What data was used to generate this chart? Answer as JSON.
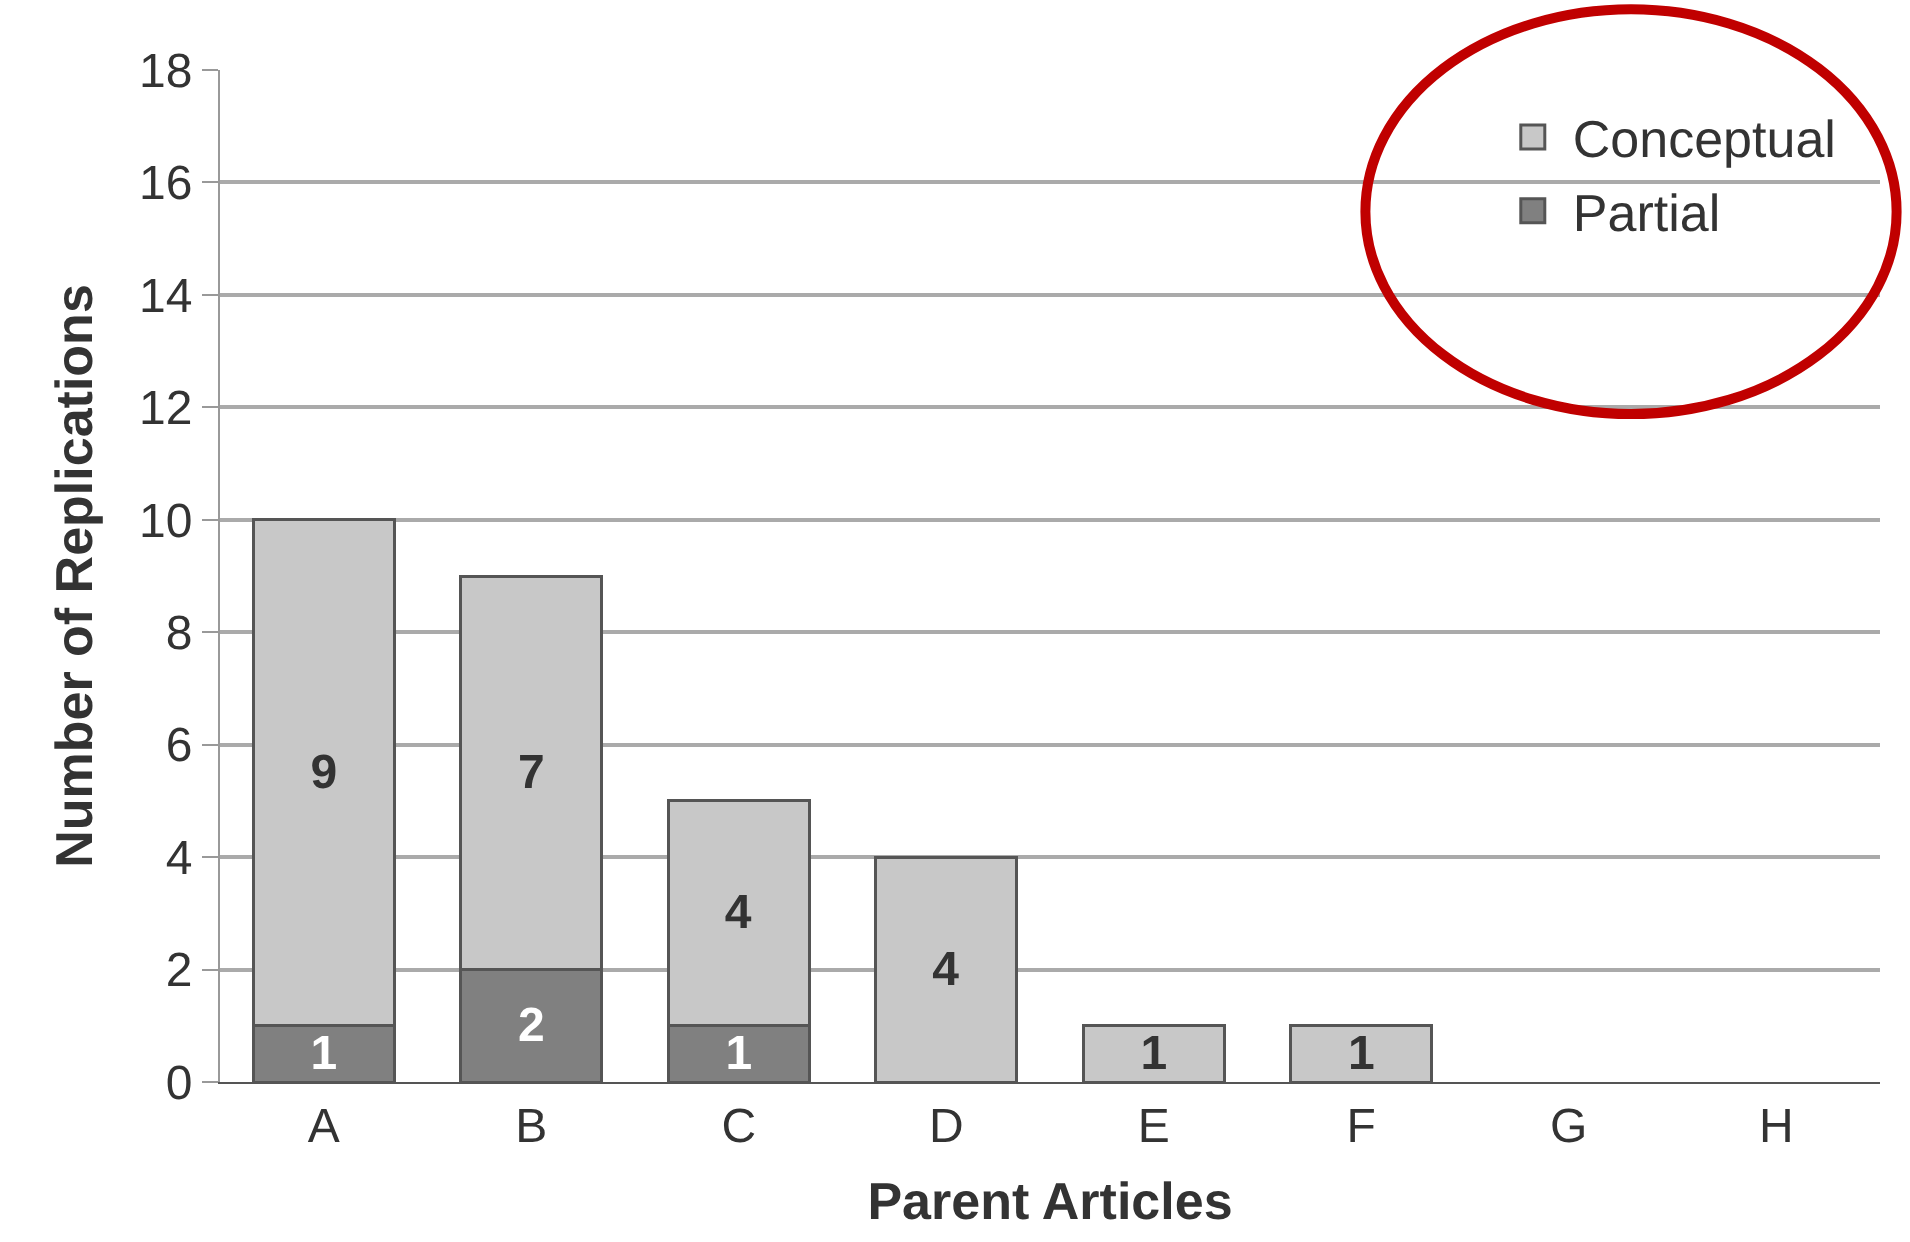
{
  "chart_data": {
    "type": "bar",
    "stacked": true,
    "xlabel": "Parent Articles",
    "ylabel": "Number of Replications",
    "categories": [
      "A",
      "B",
      "C",
      "D",
      "E",
      "F",
      "G",
      "H"
    ],
    "series": [
      {
        "name": "Partial",
        "color": "#808080",
        "values": [
          1,
          2,
          1,
          0,
          0,
          0,
          0,
          0
        ],
        "value_labels": [
          "1",
          "2",
          "1",
          null,
          null,
          null,
          null,
          null
        ]
      },
      {
        "name": "Conceptual",
        "color": "#c8c8c8",
        "values": [
          9,
          7,
          4,
          4,
          1,
          1,
          0,
          0
        ],
        "value_labels": [
          "9",
          "7",
          "4",
          "4",
          "1",
          "1",
          null,
          null
        ]
      }
    ],
    "ylim": [
      0,
      18
    ],
    "yticks": [
      0,
      2,
      4,
      6,
      8,
      10,
      12,
      14,
      16,
      18
    ],
    "grid": "y",
    "legend": "top right"
  }
}
